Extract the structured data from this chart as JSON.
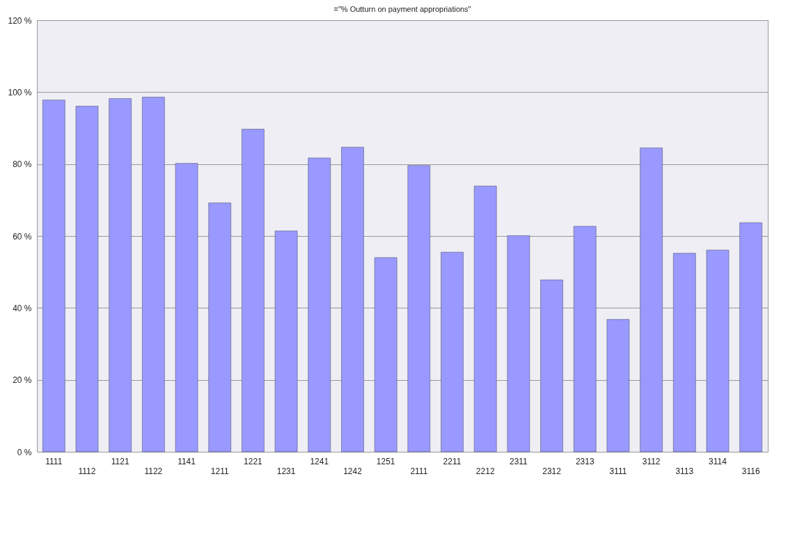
{
  "chart_data": {
    "type": "bar",
    "title": "=\"% Outturn on payment appropriations\"",
    "categories": [
      "1111",
      "1112",
      "1121",
      "1122",
      "1141",
      "1211",
      "1221",
      "1231",
      "1241",
      "1242",
      "1251",
      "2111",
      "2211",
      "2212",
      "2311",
      "2312",
      "2313",
      "3111",
      "3112",
      "3113",
      "3114",
      "3116"
    ],
    "values": [
      97.8,
      96.1,
      98.2,
      98.6,
      80.2,
      69.2,
      89.7,
      61.4,
      81.7,
      84.7,
      54.0,
      79.6,
      55.5,
      73.9,
      60.1,
      47.8,
      62.7,
      36.8,
      84.5,
      55.2,
      56.1,
      63.7
    ],
    "color": "#9999ff",
    "ylim": [
      0,
      120
    ],
    "yticks": [
      {
        "value": 0,
        "label": "0 %"
      },
      {
        "value": 20,
        "label": "20 %"
      },
      {
        "value": 40,
        "label": "40 %"
      },
      {
        "value": 60,
        "label": "60 %"
      },
      {
        "value": 80,
        "label": "80 %"
      },
      {
        "value": 100,
        "label": "100 %"
      },
      {
        "value": 120,
        "label": "120 %"
      }
    ],
    "grid": "y"
  }
}
